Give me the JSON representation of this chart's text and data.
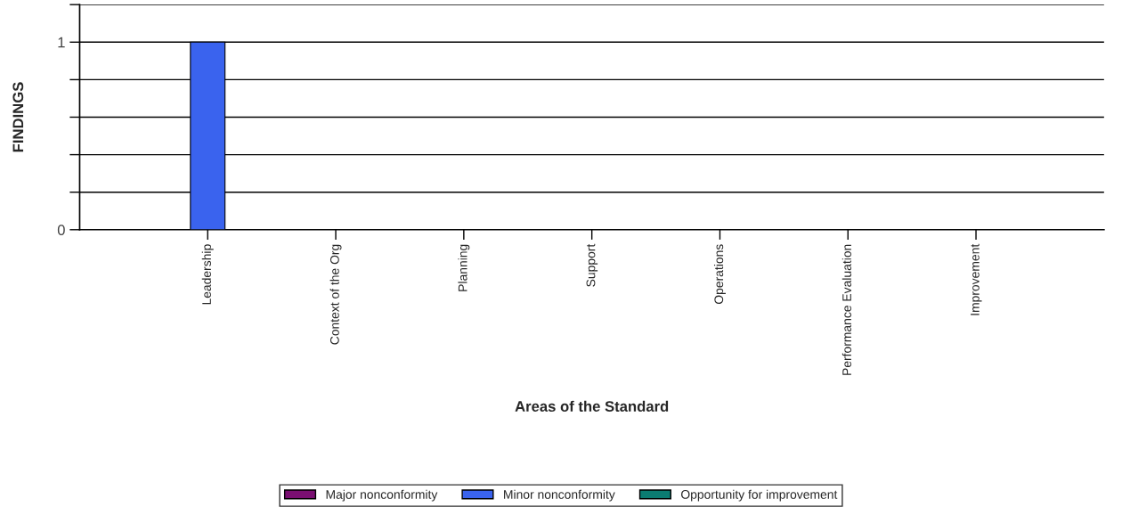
{
  "chart_data": {
    "type": "bar",
    "xlabel": "Areas of the Standard",
    "ylabel": "FINDINGS",
    "categories": [
      "Leadership",
      "Context of the Org",
      "Planning",
      "Support",
      "Operations",
      "Performance Evaluation",
      "Improvement"
    ],
    "series": [
      {
        "name": "Major nonconformity",
        "color": "#7a0f72",
        "values": [
          0,
          0,
          0,
          0,
          0,
          0,
          0
        ]
      },
      {
        "name": "Minor nonconformity",
        "color": "#3a63ee",
        "values": [
          1,
          0,
          0,
          0,
          0,
          0,
          0
        ]
      },
      {
        "name": "Opportunity for improvement",
        "color": "#0b7c72",
        "values": [
          0,
          0,
          0,
          0,
          0,
          0,
          0
        ]
      }
    ],
    "ylim": [
      0,
      1.2
    ],
    "yticks": [
      0,
      {
        "value": 0.2,
        "label": null
      },
      {
        "value": 0.4,
        "label": null
      },
      {
        "value": 0.6,
        "label": null
      },
      {
        "value": 0.8,
        "label": null
      },
      1,
      {
        "value": 1.2,
        "label": null
      }
    ],
    "grid": "y",
    "legend": "bottom"
  }
}
